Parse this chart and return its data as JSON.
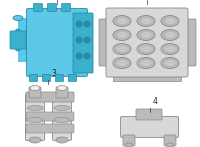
{
  "bg_color": "#ffffff",
  "blue": "#5bc8e8",
  "blue_dark": "#2a8aaa",
  "blue_mid": "#3ab0cc",
  "blue_light": "#8adcef",
  "grey": "#d8d8d8",
  "grey_dark": "#888888",
  "grey_mid": "#bbbbbb",
  "grey_light": "#eeeeee",
  "label_color": "#222222",
  "label_fontsize": 5.5,
  "figsize": [
    2.0,
    1.47
  ],
  "dpi": 100
}
